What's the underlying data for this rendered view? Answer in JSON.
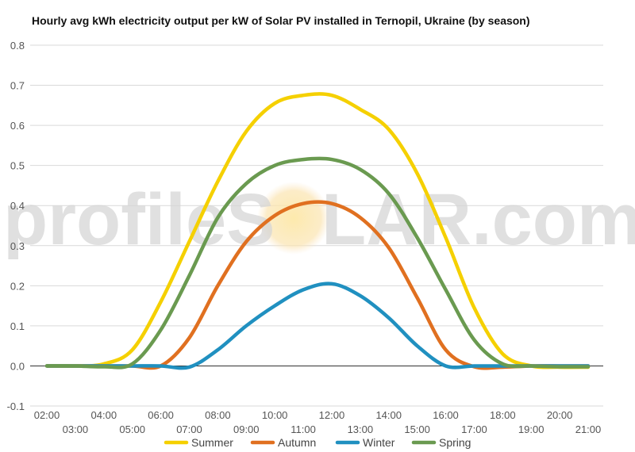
{
  "chart_data": {
    "type": "line",
    "title": "Hourly avg kWh electricity output per kW of Solar PV installed in Ternopil, Ukraine (by season)",
    "xlabel": "",
    "ylabel": "",
    "ylim": [
      -0.1,
      0.8
    ],
    "yticks": [
      "-0.1",
      "0.0",
      "0.1",
      "0.2",
      "0.3",
      "0.4",
      "0.5",
      "0.6",
      "0.7",
      "0.8"
    ],
    "x": [
      "02:00",
      "03:00",
      "04:00",
      "05:00",
      "06:00",
      "07:00",
      "08:00",
      "09:00",
      "10:00",
      "11:00",
      "12:00",
      "13:00",
      "14:00",
      "15:00",
      "16:00",
      "17:00",
      "18:00",
      "19:00",
      "20:00",
      "21:00"
    ],
    "grid": true,
    "legend_position": "bottom",
    "series": [
      {
        "name": "Summer",
        "color": "#f5d000",
        "values": [
          0.0,
          0.0,
          0.005,
          0.04,
          0.16,
          0.31,
          0.46,
          0.585,
          0.655,
          0.675,
          0.675,
          0.64,
          0.59,
          0.48,
          0.32,
          0.145,
          0.03,
          0.0,
          -0.003,
          -0.003
        ]
      },
      {
        "name": "Autumn",
        "color": "#e07020",
        "values": [
          0.0,
          0.0,
          0.0,
          0.0,
          0.0,
          0.07,
          0.2,
          0.31,
          0.375,
          0.405,
          0.405,
          0.37,
          0.295,
          0.17,
          0.04,
          -0.002,
          -0.003,
          0.0,
          0.0,
          0.0
        ]
      },
      {
        "name": "Winter",
        "color": "#2090c0",
        "values": [
          0.0,
          0.0,
          0.0,
          0.0,
          0.0,
          -0.003,
          0.04,
          0.1,
          0.15,
          0.19,
          0.205,
          0.175,
          0.12,
          0.05,
          0.0,
          0.0,
          0.0,
          0.0,
          0.0,
          0.0
        ]
      },
      {
        "name": "Spring",
        "color": "#6a9a50",
        "values": [
          0.0,
          0.0,
          -0.002,
          0.005,
          0.09,
          0.225,
          0.37,
          0.455,
          0.5,
          0.515,
          0.515,
          0.49,
          0.43,
          0.32,
          0.19,
          0.065,
          0.005,
          0.0,
          -0.002,
          -0.002
        ]
      }
    ]
  },
  "watermark": {
    "left": "profileS",
    "right": "LAR.com"
  }
}
